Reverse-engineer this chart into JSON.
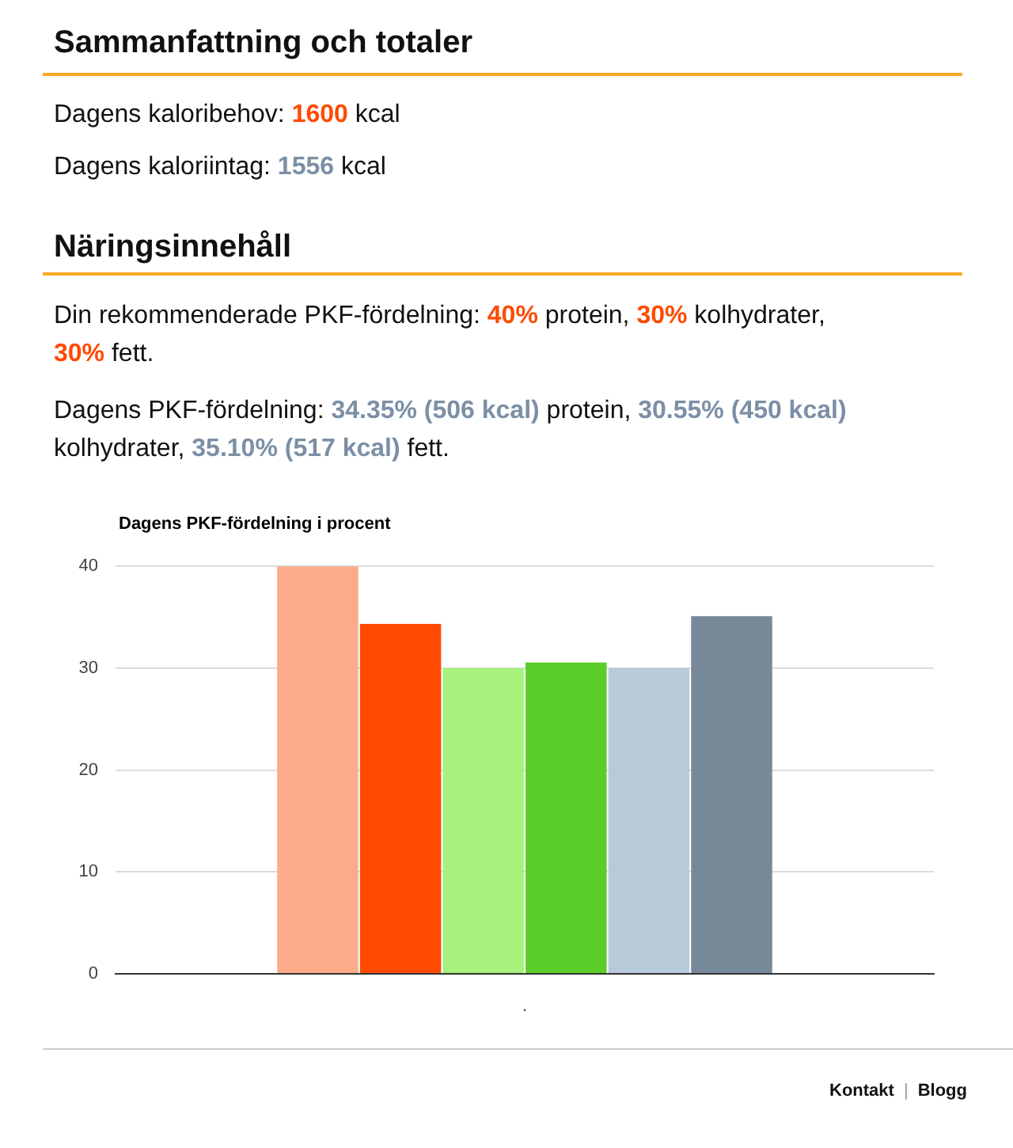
{
  "chart_data": {
    "type": "bar",
    "title": "Dagens PKF-fördelning i procent",
    "categories": [
      "."
    ],
    "series": [
      {
        "color": "#fcab8a",
        "values": [
          40
        ]
      },
      {
        "color": "#ff4a00",
        "values": [
          34.35
        ]
      },
      {
        "color": "#a6f27c",
        "values": [
          30
        ]
      },
      {
        "color": "#5acd28",
        "values": [
          30.55
        ]
      },
      {
        "color": "#b8c9da",
        "values": [
          30
        ]
      },
      {
        "color": "#778899",
        "values": [
          35.1
        ]
      }
    ],
    "ylim": [
      0,
      40
    ],
    "yticks": [
      0,
      10,
      20,
      30,
      40
    ],
    "grid": "y",
    "annotations": [
      "Sammanfattning och totaler",
      "Dagens kaloribehov: 1600 kcal",
      "Dagens kaloriintag: 1556 kcal",
      "Näringsinnehåll",
      "Din rekommenderade PKF-fördelning: 40% protein, 30% kolhydrater, 30% fett.",
      "Dagens PKF-fördelning: 34.35% (506 kcal) protein, 30.55% (450 kcal) kolhydrater, 35.10% (517 kcal) fett.",
      "Kontakt | Blogg"
    ]
  }
}
